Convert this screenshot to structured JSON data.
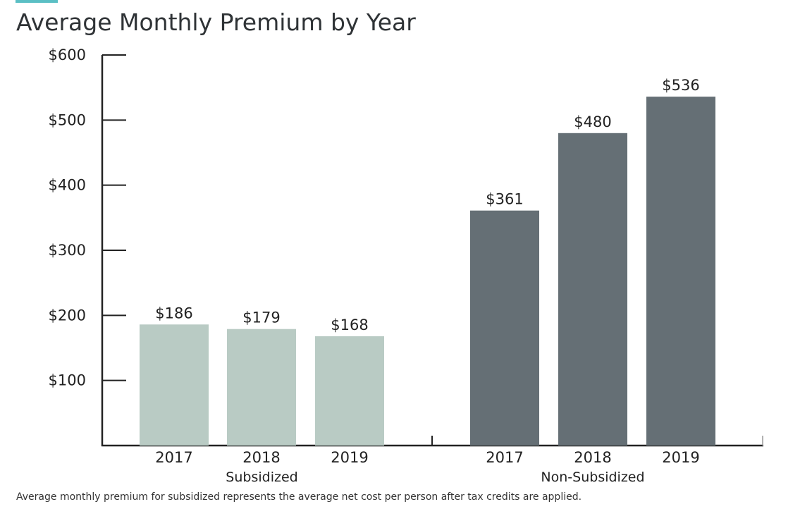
{
  "chart_data": {
    "type": "bar",
    "title": "Average Monthly Premium by Year",
    "groups": [
      {
        "name": "Subsidized",
        "categories": [
          "2017",
          "2018",
          "2019"
        ],
        "values": [
          186,
          179,
          168
        ],
        "labels": [
          "$186",
          "$179",
          "$168"
        ],
        "color": "#b9cbc4"
      },
      {
        "name": "Non-Subsidized",
        "categories": [
          "2017",
          "2018",
          "2019"
        ],
        "values": [
          361,
          480,
          536
        ],
        "labels": [
          "$361",
          "$480",
          "$536"
        ],
        "color": "#656f75"
      }
    ],
    "yticks": [
      100,
      200,
      300,
      400,
      500,
      600
    ],
    "ytick_labels": [
      "$100",
      "$200",
      "$300",
      "$400",
      "$500",
      "$600"
    ],
    "ylim": [
      0,
      600
    ],
    "grid": false,
    "xlabel": "",
    "ylabel": "",
    "footnote": "Average monthly premium for subsidized represents the average net cost per person after tax credits are applied."
  },
  "colors": {
    "accent": "#5bbfc4",
    "axis": "#222222"
  }
}
